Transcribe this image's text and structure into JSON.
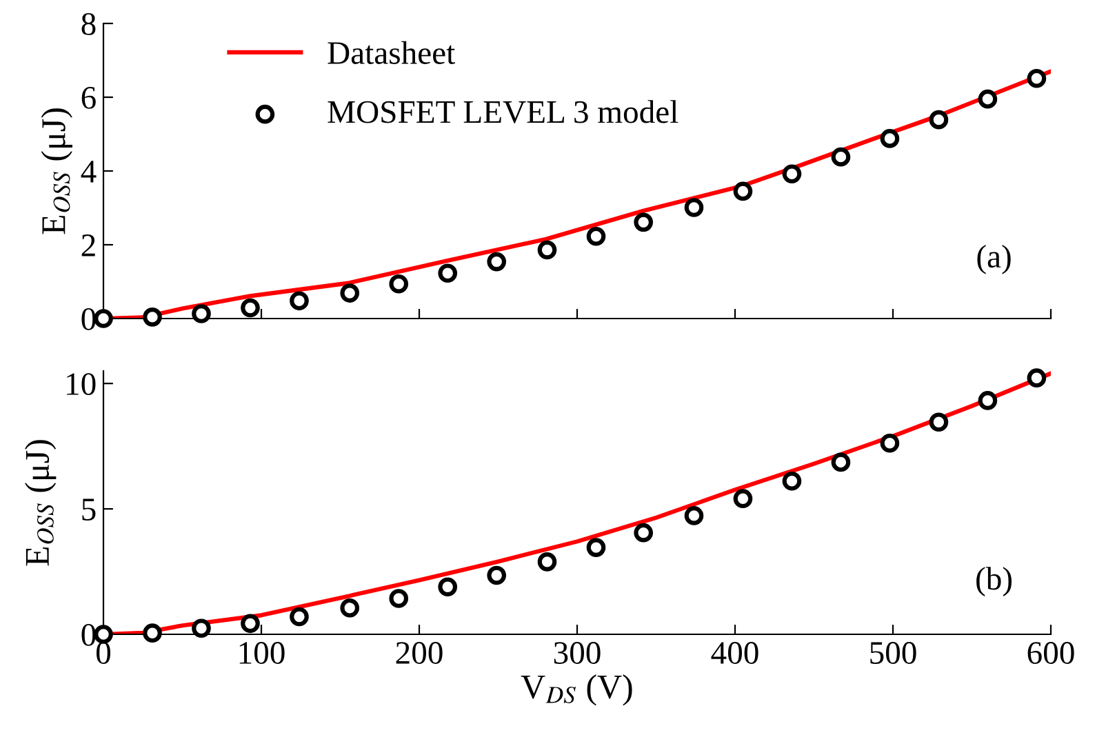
{
  "chart_data": [
    {
      "type": "line",
      "ylabel": "E$_{OSS}$ (μJ)",
      "xlim": [
        0,
        600
      ],
      "xticks": [
        0,
        100,
        200,
        300,
        400,
        500,
        600
      ],
      "ylim": [
        0,
        8
      ],
      "yticks": [
        0,
        2,
        4,
        6,
        8
      ],
      "tick_labels": "y",
      "legend": "top",
      "annotations": [
        "(a)"
      ],
      "series": [
        {
          "name": "Datasheet",
          "color": "#ff0000",
          "marker": "none",
          "line_style": "solid",
          "x": [
            0,
            25,
            50,
            93,
            155,
            218,
            280,
            342,
            404,
            436,
            498,
            529,
            600
          ],
          "values": [
            0,
            0.03,
            0.27,
            0.61,
            0.96,
            1.57,
            2.15,
            2.92,
            3.59,
            4.07,
            5.03,
            5.5,
            6.7
          ]
        },
        {
          "name": "MOSFET LEVEL 3 model",
          "type": "scatter",
          "color": "#000000",
          "marker": "circle",
          "x": [
            0,
            31,
            62,
            93,
            124,
            156,
            187,
            218,
            249,
            281,
            312,
            342,
            374,
            405,
            436,
            467,
            498,
            529,
            560,
            591
          ],
          "values": [
            0,
            0.04,
            0.13,
            0.29,
            0.48,
            0.69,
            0.94,
            1.23,
            1.54,
            1.86,
            2.23,
            2.61,
            3.01,
            3.45,
            3.92,
            4.38,
            4.88,
            5.39,
            5.95,
            6.51
          ]
        }
      ]
    },
    {
      "type": "line",
      "xlabel": "V$_{DS}$ (V)",
      "ylabel": "E$_{OSS}$ (μJ)",
      "xlim": [
        0,
        600
      ],
      "xticks": [
        0,
        100,
        200,
        300,
        400,
        500,
        600
      ],
      "ylim": [
        0,
        10.5
      ],
      "yticks": [
        0,
        5,
        10
      ],
      "annotations": [
        "(b)"
      ],
      "series": [
        {
          "color": "#ff0000",
          "marker": "none",
          "line_style": "solid",
          "x": [
            0,
            25,
            50,
            100,
            150,
            200,
            250,
            300,
            350,
            400,
            450,
            500,
            550,
            600
          ],
          "values": [
            0,
            0.06,
            0.35,
            0.76,
            1.45,
            2.16,
            2.9,
            3.7,
            4.65,
            5.76,
            6.8,
            7.9,
            9.1,
            10.4
          ]
        },
        {
          "type": "scatter",
          "color": "#000000",
          "marker": "circle",
          "x": [
            0,
            31,
            62,
            93,
            124,
            156,
            187,
            218,
            249,
            281,
            312,
            342,
            374,
            405,
            436,
            467,
            498,
            529,
            560,
            591
          ],
          "values": [
            0,
            0.05,
            0.24,
            0.43,
            0.7,
            1.05,
            1.43,
            1.89,
            2.35,
            2.89,
            3.46,
            4.05,
            4.73,
            5.41,
            6.11,
            6.86,
            7.62,
            8.46,
            9.32,
            10.22
          ]
        }
      ]
    }
  ]
}
